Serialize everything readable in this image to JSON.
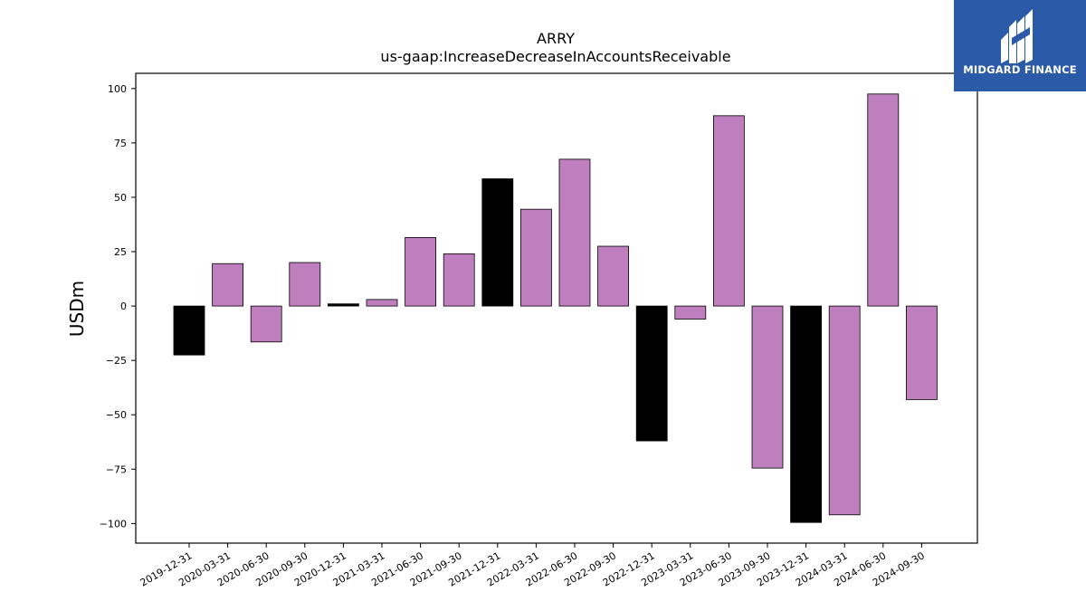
{
  "chart_data": {
    "type": "bar",
    "title": "ARRY",
    "subtitle": "us-gaap:IncreaseDecreaseInAccountsReceivable",
    "xlabel": "",
    "ylabel": "USDm",
    "ylim": [
      -109,
      107
    ],
    "yticks": [
      -100,
      -75,
      -50,
      -25,
      0,
      25,
      50,
      75,
      100
    ],
    "ytick_labels": [
      "−100",
      "−75",
      "−50",
      "−25",
      "0",
      "25",
      "50",
      "75",
      "100"
    ],
    "grid": false,
    "categories": [
      "2019-12-31",
      "2020-03-31",
      "2020-06-30",
      "2020-09-30",
      "2020-12-31",
      "2021-03-31",
      "2021-06-30",
      "2021-09-30",
      "2021-12-31",
      "2022-03-31",
      "2022-06-30",
      "2022-09-30",
      "2022-12-31",
      "2023-03-31",
      "2023-06-30",
      "2023-09-30",
      "2023-12-31",
      "2024-03-31",
      "2024-06-30",
      "2024-09-30"
    ],
    "values": [
      -22.5,
      19.5,
      -16.5,
      20,
      1,
      3,
      31.5,
      24,
      58.5,
      44.5,
      67.5,
      27.5,
      -62,
      -6,
      87.5,
      -74.5,
      -99.5,
      -96,
      97.5,
      -43
    ],
    "colors": {
      "annual": "#000000",
      "quarterly": "#bf7fbf",
      "edge": "#000000"
    },
    "bar_colors": [
      "annual",
      "quarterly",
      "quarterly",
      "quarterly",
      "annual",
      "quarterly",
      "quarterly",
      "quarterly",
      "annual",
      "quarterly",
      "quarterly",
      "quarterly",
      "annual",
      "quarterly",
      "quarterly",
      "quarterly",
      "annual",
      "quarterly",
      "quarterly",
      "quarterly"
    ]
  },
  "logo": {
    "text": "MIDGARD FINANCE",
    "icon": "midgard-logo-icon",
    "background": "#2b5aa9"
  }
}
